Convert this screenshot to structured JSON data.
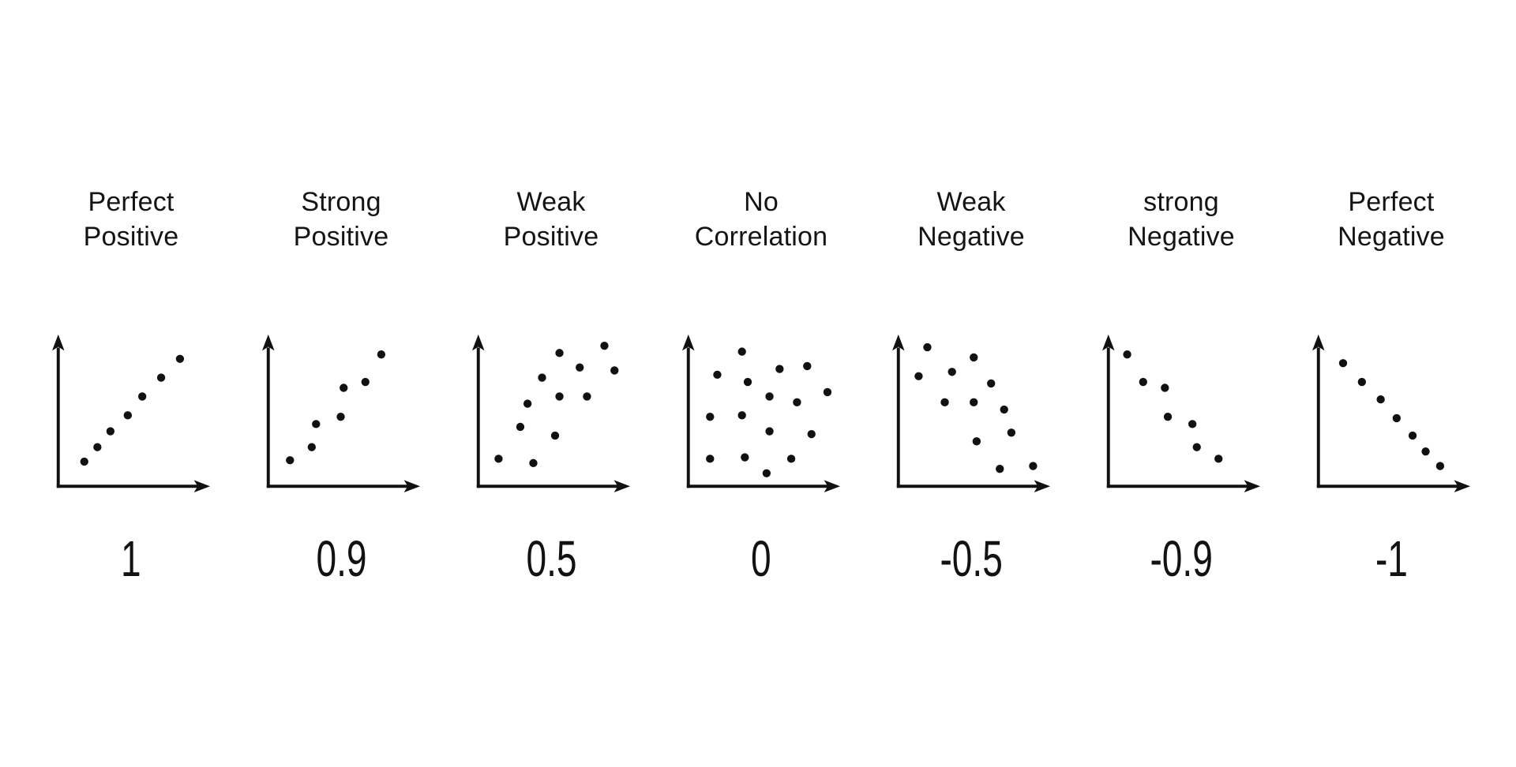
{
  "page": {
    "background": "#ffffff",
    "ink": "#111111",
    "description_visible_text_only": true
  },
  "chart_data": [
    {
      "type": "scatter",
      "title": "Perfect Positive",
      "title_lines": [
        "Perfect",
        "Positive"
      ],
      "correlation_label": "1",
      "correlation_value": 1,
      "xlim": [
        0,
        1
      ],
      "ylim": [
        0,
        1
      ],
      "axes": "bare arrowed axes, no ticks, no gridlines",
      "points": [
        [
          0.18,
          0.17
        ],
        [
          0.27,
          0.27
        ],
        [
          0.36,
          0.38
        ],
        [
          0.48,
          0.49
        ],
        [
          0.58,
          0.62
        ],
        [
          0.71,
          0.75
        ],
        [
          0.84,
          0.88
        ]
      ]
    },
    {
      "type": "scatter",
      "title": "Strong Positive",
      "title_lines": [
        "Strong",
        "Positive"
      ],
      "correlation_label": "0.9",
      "correlation_value": 0.9,
      "xlim": [
        0,
        1
      ],
      "ylim": [
        0,
        1
      ],
      "axes": "bare arrowed axes, no ticks, no gridlines",
      "points": [
        [
          0.15,
          0.18
        ],
        [
          0.3,
          0.27
        ],
        [
          0.33,
          0.43
        ],
        [
          0.5,
          0.48
        ],
        [
          0.52,
          0.68
        ],
        [
          0.67,
          0.72
        ],
        [
          0.78,
          0.91
        ]
      ]
    },
    {
      "type": "scatter",
      "title": "Weak Positive",
      "title_lines": [
        "Weak",
        "Positive"
      ],
      "correlation_label": "0.5",
      "correlation_value": 0.5,
      "xlim": [
        0,
        1
      ],
      "ylim": [
        0,
        1
      ],
      "axes": "bare arrowed axes, no ticks, no gridlines",
      "points": [
        [
          0.14,
          0.19
        ],
        [
          0.38,
          0.16
        ],
        [
          0.29,
          0.41
        ],
        [
          0.53,
          0.35
        ],
        [
          0.34,
          0.57
        ],
        [
          0.44,
          0.75
        ],
        [
          0.56,
          0.62
        ],
        [
          0.56,
          0.92
        ],
        [
          0.7,
          0.82
        ],
        [
          0.75,
          0.62
        ],
        [
          0.87,
          0.97
        ],
        [
          0.94,
          0.8
        ]
      ]
    },
    {
      "type": "scatter",
      "title": "No Correlation",
      "title_lines": [
        "No",
        "Correlation"
      ],
      "correlation_label": "0",
      "correlation_value": 0,
      "xlim": [
        0,
        1
      ],
      "ylim": [
        0,
        1
      ],
      "axes": "bare arrowed axes, no ticks, no gridlines",
      "points": [
        [
          0.15,
          0.19
        ],
        [
          0.39,
          0.2
        ],
        [
          0.71,
          0.19
        ],
        [
          0.54,
          0.09
        ],
        [
          0.15,
          0.48
        ],
        [
          0.37,
          0.49
        ],
        [
          0.56,
          0.38
        ],
        [
          0.85,
          0.36
        ],
        [
          0.56,
          0.62
        ],
        [
          0.75,
          0.58
        ],
        [
          0.96,
          0.65
        ],
        [
          0.2,
          0.77
        ],
        [
          0.41,
          0.72
        ],
        [
          0.63,
          0.81
        ],
        [
          0.82,
          0.83
        ],
        [
          0.37,
          0.93
        ]
      ]
    },
    {
      "type": "scatter",
      "title": "Weak Negative",
      "title_lines": [
        "Weak",
        "Negative"
      ],
      "correlation_label": "-0.5",
      "correlation_value": -0.5,
      "xlim": [
        0,
        1
      ],
      "ylim": [
        0,
        1
      ],
      "axes": "bare arrowed axes, no ticks, no gridlines",
      "points": [
        [
          0.2,
          0.96
        ],
        [
          0.52,
          0.89
        ],
        [
          0.14,
          0.76
        ],
        [
          0.37,
          0.79
        ],
        [
          0.64,
          0.71
        ],
        [
          0.32,
          0.58
        ],
        [
          0.52,
          0.58
        ],
        [
          0.73,
          0.53
        ],
        [
          0.78,
          0.37
        ],
        [
          0.54,
          0.31
        ],
        [
          0.7,
          0.12
        ],
        [
          0.93,
          0.14
        ]
      ]
    },
    {
      "type": "scatter",
      "title": "strong Negative",
      "title_lines": [
        "strong",
        "Negative"
      ],
      "correlation_label": "-0.9",
      "correlation_value": -0.9,
      "xlim": [
        0,
        1
      ],
      "ylim": [
        0,
        1
      ],
      "axes": "bare arrowed axes, no ticks, no gridlines",
      "points": [
        [
          0.13,
          0.91
        ],
        [
          0.24,
          0.72
        ],
        [
          0.39,
          0.68
        ],
        [
          0.41,
          0.48
        ],
        [
          0.58,
          0.43
        ],
        [
          0.61,
          0.27
        ],
        [
          0.76,
          0.19
        ]
      ]
    },
    {
      "type": "scatter",
      "title": "Perfect Negative",
      "title_lines": [
        "Perfect",
        "Negative"
      ],
      "correlation_label": "-1",
      "correlation_value": -1,
      "xlim": [
        0,
        1
      ],
      "ylim": [
        0,
        1
      ],
      "axes": "bare arrowed axes, no ticks, no gridlines",
      "points": [
        [
          0.17,
          0.85
        ],
        [
          0.3,
          0.72
        ],
        [
          0.43,
          0.6
        ],
        [
          0.54,
          0.47
        ],
        [
          0.65,
          0.35
        ],
        [
          0.74,
          0.24
        ],
        [
          0.84,
          0.14
        ]
      ]
    }
  ]
}
